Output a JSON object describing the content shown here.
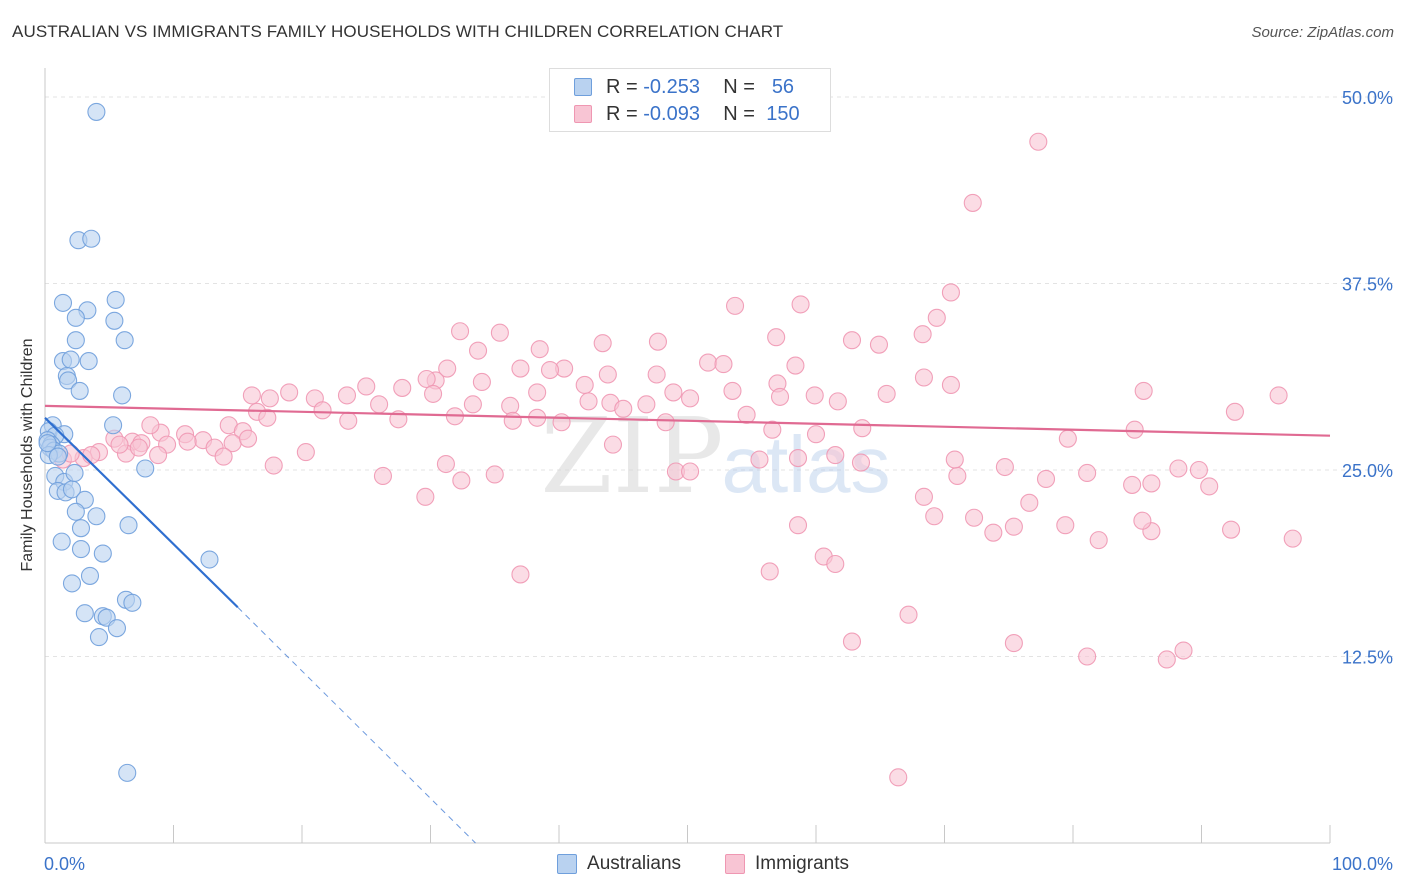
{
  "header": {
    "title": "AUSTRALIAN VS IMMIGRANTS FAMILY HOUSEHOLDS WITH CHILDREN CORRELATION CHART",
    "source": "Source: ZipAtlas.com"
  },
  "legend": {
    "rows": [
      {
        "r_label": "R =",
        "r_value": "-0.253",
        "n_label": "N =",
        "n_value": "56"
      },
      {
        "r_label": "R =",
        "r_value": "-0.093",
        "n_label": "N =",
        "n_value": "150"
      }
    ]
  },
  "bottom_legend": [
    "Australians",
    "Immigrants"
  ],
  "watermark": {
    "zip": "ZIP",
    "atlas": "atlas"
  },
  "colors": {
    "australians_fill": "#b9d2f0",
    "australians_stroke": "#6f9fdc",
    "australians_line": "#2f6fd0",
    "immigrants_fill": "#f8c5d4",
    "immigrants_stroke": "#ef97b2",
    "immigrants_line": "#e06a92",
    "tick_text": "#3b73c9",
    "grid": "#e3e3e3"
  },
  "chart_data": {
    "type": "scatter",
    "title": "AUSTRALIAN VS IMMIGRANTS FAMILY HOUSEHOLDS WITH CHILDREN CORRELATION CHART",
    "xlabel": "",
    "ylabel": "Family Households with Children",
    "xlim": [
      0,
      100
    ],
    "ylim": [
      0,
      50
    ],
    "x_tick_labels": [
      {
        "value": 0,
        "label": "0.0%"
      },
      {
        "value": 100,
        "label": "100.0%"
      }
    ],
    "y_tick_labels": [
      {
        "value": 12.5,
        "label": "12.5%"
      },
      {
        "value": 25,
        "label": "25.0%"
      },
      {
        "value": 37.5,
        "label": "37.5%"
      },
      {
        "value": 50,
        "label": "50.0%"
      }
    ],
    "grid": true,
    "series": [
      {
        "name": "Australians",
        "R": -0.253,
        "N": 56,
        "trend": {
          "x": [
            0,
            15
          ],
          "y": [
            28.5,
            15.8
          ],
          "dashed_to": {
            "x": 33.5,
            "y": 0
          }
        },
        "points": [
          [
            4,
            49
          ],
          [
            2.6,
            40.4
          ],
          [
            3.6,
            40.5
          ],
          [
            1.4,
            36.2
          ],
          [
            5.5,
            36.4
          ],
          [
            3.3,
            35.7
          ],
          [
            2.4,
            35.2
          ],
          [
            5.4,
            35.0
          ],
          [
            2.4,
            33.7
          ],
          [
            6.2,
            33.7
          ],
          [
            1.4,
            32.3
          ],
          [
            2.0,
            32.4
          ],
          [
            3.4,
            32.3
          ],
          [
            1.7,
            31.3
          ],
          [
            1.8,
            31.0
          ],
          [
            2.7,
            30.3
          ],
          [
            6.0,
            30.0
          ],
          [
            5.3,
            28.0
          ],
          [
            0.6,
            28.0
          ],
          [
            0.3,
            27.6
          ],
          [
            1.5,
            27.4
          ],
          [
            0.8,
            27.3
          ],
          [
            0.2,
            27.0
          ],
          [
            0.5,
            26.7
          ],
          [
            0.4,
            26.5
          ],
          [
            0.7,
            26.3
          ],
          [
            1.1,
            26.1
          ],
          [
            0.3,
            26.0
          ],
          [
            7.8,
            25.1
          ],
          [
            0.8,
            24.6
          ],
          [
            1.5,
            24.2
          ],
          [
            1.0,
            23.6
          ],
          [
            1.6,
            23.5
          ],
          [
            2.1,
            23.7
          ],
          [
            3.1,
            23.0
          ],
          [
            2.4,
            22.2
          ],
          [
            4.0,
            21.9
          ],
          [
            6.5,
            21.3
          ],
          [
            2.8,
            21.1
          ],
          [
            1.3,
            20.2
          ],
          [
            2.8,
            19.7
          ],
          [
            4.5,
            19.4
          ],
          [
            12.8,
            19.0
          ],
          [
            3.5,
            17.9
          ],
          [
            2.1,
            17.4
          ],
          [
            6.3,
            16.3
          ],
          [
            6.8,
            16.1
          ],
          [
            3.1,
            15.4
          ],
          [
            4.5,
            15.2
          ],
          [
            4.8,
            15.1
          ],
          [
            5.6,
            14.4
          ],
          [
            4.2,
            13.8
          ],
          [
            6.4,
            4.7
          ],
          [
            0.2,
            26.8
          ],
          [
            1.0,
            25.9
          ],
          [
            2.3,
            24.8
          ]
        ]
      },
      {
        "name": "Immigrants",
        "R": -0.093,
        "N": 150,
        "trend": {
          "x": [
            0,
            100
          ],
          "y": [
            29.3,
            27.3
          ]
        },
        "points": [
          [
            77.3,
            47.0
          ],
          [
            72.2,
            42.9
          ],
          [
            70.5,
            36.9
          ],
          [
            53.7,
            36.0
          ],
          [
            58.8,
            36.1
          ],
          [
            69.4,
            35.2
          ],
          [
            32.3,
            34.3
          ],
          [
            35.4,
            34.2
          ],
          [
            68.3,
            34.1
          ],
          [
            56.9,
            33.9
          ],
          [
            47.7,
            33.6
          ],
          [
            43.4,
            33.5
          ],
          [
            62.8,
            33.7
          ],
          [
            64.9,
            33.4
          ],
          [
            33.7,
            33.0
          ],
          [
            38.5,
            33.1
          ],
          [
            51.6,
            32.2
          ],
          [
            52.8,
            32.1
          ],
          [
            58.4,
            32.0
          ],
          [
            31.3,
            31.8
          ],
          [
            37.0,
            31.8
          ],
          [
            40.4,
            31.8
          ],
          [
            68.4,
            31.2
          ],
          [
            30.4,
            31.0
          ],
          [
            34.0,
            30.9
          ],
          [
            47.6,
            31.4
          ],
          [
            43.8,
            31.4
          ],
          [
            39.3,
            31.7
          ],
          [
            29.7,
            31.1
          ],
          [
            25.0,
            30.6
          ],
          [
            38.3,
            30.2
          ],
          [
            42.0,
            30.7
          ],
          [
            48.9,
            30.2
          ],
          [
            53.5,
            30.3
          ],
          [
            57.0,
            30.8
          ],
          [
            16.1,
            30.0
          ],
          [
            17.5,
            29.8
          ],
          [
            19.0,
            30.2
          ],
          [
            21.0,
            29.8
          ],
          [
            23.5,
            30.0
          ],
          [
            26.0,
            29.4
          ],
          [
            27.8,
            30.5
          ],
          [
            30.2,
            30.1
          ],
          [
            33.3,
            29.4
          ],
          [
            36.2,
            29.3
          ],
          [
            42.3,
            29.6
          ],
          [
            44.0,
            29.5
          ],
          [
            46.8,
            29.4
          ],
          [
            50.2,
            29.8
          ],
          [
            57.2,
            29.9
          ],
          [
            59.9,
            30.0
          ],
          [
            61.7,
            29.6
          ],
          [
            65.5,
            30.1
          ],
          [
            70.5,
            30.7
          ],
          [
            16.5,
            28.9
          ],
          [
            17.3,
            28.5
          ],
          [
            21.6,
            29.0
          ],
          [
            23.6,
            28.3
          ],
          [
            27.5,
            28.4
          ],
          [
            31.9,
            28.6
          ],
          [
            36.4,
            28.3
          ],
          [
            38.3,
            28.5
          ],
          [
            40.2,
            28.2
          ],
          [
            45.0,
            29.1
          ],
          [
            48.3,
            28.2
          ],
          [
            54.6,
            28.7
          ],
          [
            56.6,
            27.7
          ],
          [
            60.0,
            27.4
          ],
          [
            63.6,
            27.8
          ],
          [
            14.3,
            28.0
          ],
          [
            15.4,
            27.6
          ],
          [
            9.0,
            27.5
          ],
          [
            10.9,
            27.4
          ],
          [
            12.3,
            27.0
          ],
          [
            6.8,
            26.9
          ],
          [
            5.4,
            27.1
          ],
          [
            7.5,
            26.8
          ],
          [
            9.5,
            26.7
          ],
          [
            11.1,
            26.9
          ],
          [
            13.2,
            26.5
          ],
          [
            14.6,
            26.8
          ],
          [
            4.2,
            26.2
          ],
          [
            3.0,
            25.8
          ],
          [
            1.4,
            25.7
          ],
          [
            2.0,
            26.1
          ],
          [
            3.6,
            26.0
          ],
          [
            6.3,
            26.1
          ],
          [
            8.8,
            26.0
          ],
          [
            13.9,
            25.9
          ],
          [
            7.3,
            26.5
          ],
          [
            15.8,
            27.1
          ],
          [
            20.3,
            26.2
          ],
          [
            31.2,
            25.4
          ],
          [
            35.0,
            24.7
          ],
          [
            44.2,
            26.7
          ],
          [
            49.1,
            24.9
          ],
          [
            50.2,
            24.9
          ],
          [
            58.6,
            25.8
          ],
          [
            55.6,
            25.7
          ],
          [
            61.5,
            26.0
          ],
          [
            63.5,
            25.5
          ],
          [
            71.0,
            24.6
          ],
          [
            74.7,
            25.2
          ],
          [
            77.9,
            24.4
          ],
          [
            81.1,
            24.8
          ],
          [
            86.1,
            24.1
          ],
          [
            17.8,
            25.3
          ],
          [
            68.4,
            23.2
          ],
          [
            76.6,
            22.8
          ],
          [
            90.6,
            23.9
          ],
          [
            29.6,
            23.2
          ],
          [
            26.3,
            24.6
          ],
          [
            32.4,
            24.3
          ],
          [
            69.2,
            21.9
          ],
          [
            58.6,
            21.3
          ],
          [
            73.8,
            20.8
          ],
          [
            75.4,
            21.2
          ],
          [
            79.4,
            21.3
          ],
          [
            86.1,
            20.9
          ],
          [
            97.1,
            20.4
          ],
          [
            72.3,
            21.8
          ],
          [
            60.6,
            19.2
          ],
          [
            61.5,
            18.7
          ],
          [
            56.4,
            18.2
          ],
          [
            37.0,
            18.0
          ],
          [
            62.8,
            13.5
          ],
          [
            67.2,
            15.3
          ],
          [
            75.4,
            13.4
          ],
          [
            87.3,
            12.3
          ],
          [
            81.1,
            12.5
          ],
          [
            88.6,
            12.9
          ],
          [
            82.0,
            20.3
          ],
          [
            85.4,
            21.6
          ],
          [
            70.8,
            25.7
          ],
          [
            84.6,
            24.0
          ],
          [
            88.2,
            25.1
          ],
          [
            92.3,
            21.0
          ],
          [
            89.8,
            25.0
          ],
          [
            84.8,
            27.7
          ],
          [
            96.0,
            30.0
          ],
          [
            79.6,
            27.1
          ],
          [
            85.5,
            30.3
          ],
          [
            92.6,
            28.9
          ],
          [
            66.4,
            4.4
          ],
          [
            5.8,
            26.7
          ],
          [
            8.2,
            28.0
          ]
        ]
      }
    ]
  }
}
